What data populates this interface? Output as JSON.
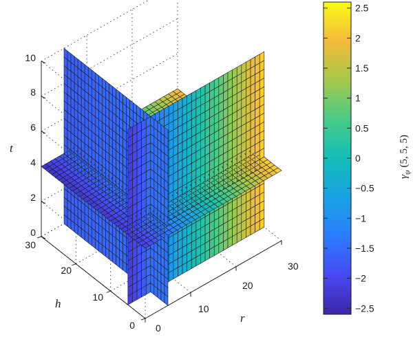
{
  "chart_data": {
    "type": "surface3d",
    "title": "",
    "xlabel": "r",
    "ylabel": "h",
    "zlabel": "t",
    "xlim": [
      0,
      30
    ],
    "ylim": [
      0,
      30
    ],
    "zlim": [
      0,
      10
    ],
    "x_ticks": [
      "0",
      "10",
      "20",
      "30"
    ],
    "y_ticks": [
      "0",
      "10",
      "20",
      "30"
    ],
    "z_ticks": [
      "0",
      "2",
      "4",
      "6",
      "8",
      "10"
    ],
    "grid": true,
    "slices": [
      {
        "plane": "r",
        "value": 5,
        "h_range": [
          0,
          30
        ],
        "t_range": [
          0,
          10
        ]
      },
      {
        "plane": "h",
        "value": 5,
        "r_range": [
          0,
          30
        ],
        "t_range": [
          0,
          10
        ]
      },
      {
        "plane": "t",
        "value": 4,
        "r_range": [
          0,
          30
        ],
        "h_range": [
          0,
          30
        ]
      }
    ],
    "colorbar": {
      "label": "γψ (5, 5, 5)",
      "label_main": "γ",
      "label_sub": "ψ",
      "label_args": " (5, 5, 5)",
      "colormap": "parula",
      "range": [
        -2.6,
        2.6
      ],
      "ticks": [
        "2.5",
        "2",
        "1.5",
        "1",
        "0.5",
        "0",
        "−0.5",
        "−1",
        "−1.5",
        "−2",
        "−2.5"
      ],
      "tick_values": [
        2.5,
        2,
        1.5,
        1,
        0.5,
        0,
        -0.5,
        -1,
        -1.5,
        -2,
        -2.5
      ]
    }
  }
}
